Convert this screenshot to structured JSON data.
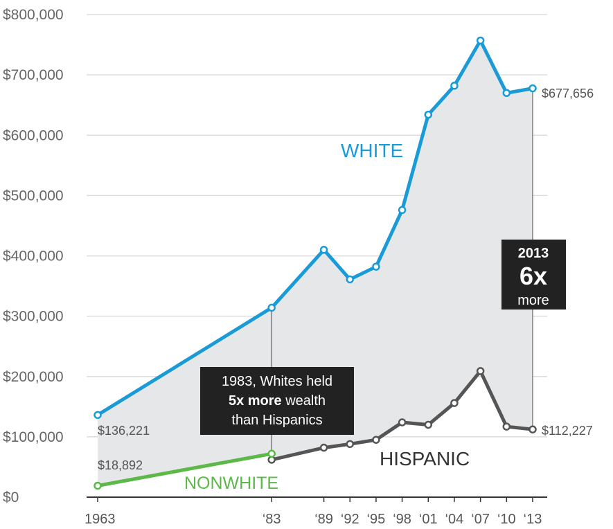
{
  "chart_data": {
    "type": "line",
    "x": [
      1963,
      1983,
      1989,
      1992,
      1995,
      1998,
      2001,
      2004,
      2007,
      2010,
      2013
    ],
    "x_tick_labels": [
      "1963",
      "‘83",
      "‘89",
      "‘92",
      "‘95",
      "‘98",
      "‘01",
      "‘04",
      "‘07",
      "‘10",
      "‘13"
    ],
    "ylim": [
      0,
      800000
    ],
    "y_ticks": [
      0,
      100000,
      200000,
      300000,
      400000,
      500000,
      600000,
      700000,
      800000
    ],
    "y_tick_labels": [
      "$0",
      "$100,000",
      "$200,000",
      "$300,000",
      "$400,000",
      "$500,000",
      "$600,000",
      "$700,000",
      "$800,000"
    ],
    "grid": true,
    "series": [
      {
        "name": "WHITE",
        "color": "#1a9bd7",
        "x": [
          1963,
          1983,
          1989,
          1992,
          1995,
          1998,
          2001,
          2004,
          2007,
          2010,
          2013
        ],
        "values": [
          136221,
          314000,
          410000,
          361000,
          382000,
          476000,
          634000,
          682000,
          757000,
          670000,
          677656
        ]
      },
      {
        "name": "HISPANIC",
        "color": "#555555",
        "x": [
          1983,
          1989,
          1992,
          1995,
          1998,
          2001,
          2004,
          2007,
          2010,
          2013
        ],
        "values": [
          62000,
          82000,
          88000,
          95000,
          124000,
          120000,
          156000,
          209000,
          117000,
          112227
        ]
      },
      {
        "name": "NONWHITE",
        "color": "#5ab947",
        "x": [
          1963,
          1983
        ],
        "values": [
          18892,
          72000
        ]
      }
    ],
    "area_fill": "#e6e7e9",
    "end_labels": {
      "white_start": "$136,221",
      "nonwhite_start": "$18,892",
      "white_end": "$677,656",
      "hispanic_end": "$112,227"
    },
    "annotations": {
      "callout_1983": {
        "line1": "1983, Whites held",
        "line2_bold": "5x more",
        "line2_rest": " wealth",
        "line3": "than Hispanics"
      },
      "callout_2013": {
        "year": "2013",
        "ratio": "6x",
        "word": "more"
      }
    }
  }
}
